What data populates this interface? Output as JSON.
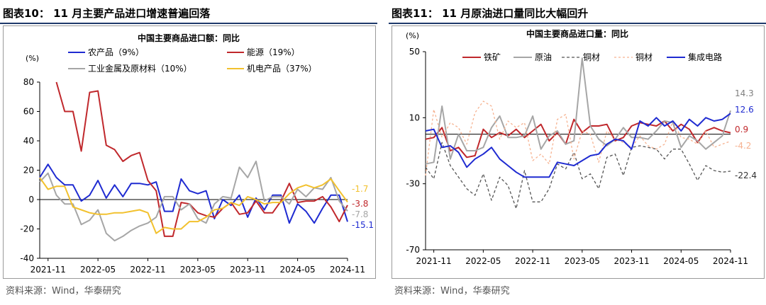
{
  "panels": [
    {
      "title": "图表10：  11 月主要产品进口增速普遍回落",
      "source": "资料来源：Wind，华泰研究"
    },
    {
      "title": "图表11：  11 月原油进口量同比大幅回升",
      "source": "资料来源：Wind，华泰研究"
    }
  ],
  "chart_data": [
    {
      "type": "line",
      "title": "中国主要商品进口额：同比",
      "ylabel": "(%)",
      "ylim": [
        -40,
        80
      ],
      "yticks": [
        -40,
        -20,
        0,
        20,
        40,
        60,
        80
      ],
      "x_range": [
        "2021-10",
        "2024-11"
      ],
      "x_tick_labels": [
        "2021-11",
        "2022-05",
        "2022-11",
        "2023-05",
        "2023-11",
        "2024-05",
        "2024-11"
      ],
      "legend_position": "top",
      "x": [
        "2021-10",
        "2021-11",
        "2021-12",
        "2022-01",
        "2022-02",
        "2022-03",
        "2022-04",
        "2022-05",
        "2022-06",
        "2022-07",
        "2022-08",
        "2022-09",
        "2022-10",
        "2022-11",
        "2022-12",
        "2023-01",
        "2023-02",
        "2023-03",
        "2023-04",
        "2023-05",
        "2023-06",
        "2023-07",
        "2023-08",
        "2023-09",
        "2023-10",
        "2023-11",
        "2023-12",
        "2024-01",
        "2024-02",
        "2024-03",
        "2024-04",
        "2024-05",
        "2024-06",
        "2024-07",
        "2024-08",
        "2024-09",
        "2024-10",
        "2024-11"
      ],
      "series": [
        {
          "name": "农产品（9%）",
          "color": "#1f2bd1",
          "values": [
            15,
            24,
            15,
            10,
            10,
            -1,
            3,
            13,
            1,
            10,
            2,
            11,
            11,
            10,
            12,
            -8,
            -8,
            14,
            6,
            4,
            6,
            -13,
            0,
            -4,
            3,
            -12,
            1,
            -7,
            3,
            3,
            -16,
            -3,
            -8,
            -16,
            -6,
            3,
            3,
            -15.1
          ]
        },
        {
          "name": "能源（19%）",
          "color": "#c0282c",
          "values": [
            null,
            null,
            80,
            60,
            60,
            33,
            73,
            74,
            37,
            34,
            26,
            30,
            32,
            13,
            6,
            -25,
            -25,
            -2,
            -3,
            -9,
            -11,
            -12,
            -6,
            -2,
            -10,
            -9,
            -1,
            -9,
            -9,
            -1,
            11,
            -2,
            -1,
            -1,
            2,
            -5,
            -15,
            -3.8
          ]
        },
        {
          "name": "工业金属及原材料（10%）",
          "color": "#a6a6a6",
          "values": [
            12,
            18,
            3,
            -3,
            -3,
            -17,
            -14,
            -7,
            -23,
            -28,
            -25,
            -21,
            -18,
            -16,
            -12,
            2,
            2,
            -7,
            -3,
            -13,
            -16,
            -3,
            2,
            1,
            22,
            15,
            26,
            -1,
            2,
            2,
            -3,
            7,
            2,
            8,
            7,
            15,
            -1,
            -7.8
          ]
        },
        {
          "name": "机电产品（37%）",
          "color": "#f2c12e",
          "values": [
            15,
            7,
            9,
            9,
            -5,
            -7,
            -9,
            -10,
            -10,
            -9,
            -9,
            -8,
            -7,
            -9,
            -23,
            -19,
            -20,
            -20,
            -15,
            -15,
            -12,
            -7,
            -6,
            -2,
            -4,
            2,
            0,
            -3,
            -2,
            -2,
            4,
            8,
            10,
            8,
            10,
            14,
            6,
            -1.7
          ]
        }
      ],
      "end_labels": [
        "-1.7",
        "-3.8",
        "-7.8",
        "-15.1"
      ]
    },
    {
      "type": "line",
      "title": "中国主要商品进口量：同比",
      "ylabel": "(%)",
      "ylim": [
        -70,
        50
      ],
      "yticks": [
        -70,
        -30,
        10,
        50
      ],
      "x_range": [
        "2021-10",
        "2024-11"
      ],
      "x_tick_labels": [
        "2021-11",
        "2022-05",
        "2022-11",
        "2023-05",
        "2023-11",
        "2024-05",
        "2024-11"
      ],
      "legend_position": "top",
      "x": [
        "2021-10",
        "2021-11",
        "2021-12",
        "2022-01",
        "2022-02",
        "2022-03",
        "2022-04",
        "2022-05",
        "2022-06",
        "2022-07",
        "2022-08",
        "2022-09",
        "2022-10",
        "2022-11",
        "2022-12",
        "2023-01",
        "2023-02",
        "2023-03",
        "2023-04",
        "2023-05",
        "2023-06",
        "2023-07",
        "2023-08",
        "2023-09",
        "2023-10",
        "2023-11",
        "2023-12",
        "2024-01",
        "2024-02",
        "2024-03",
        "2024-04",
        "2024-05",
        "2024-06",
        "2024-07",
        "2024-08",
        "2024-09",
        "2024-10",
        "2024-11"
      ],
      "series": [
        {
          "name": "铁矿",
          "color": "#c0282c",
          "values": [
            -3,
            -2,
            4,
            -10,
            -8,
            -14,
            -13,
            3,
            -2,
            1,
            -1,
            3,
            -2,
            2,
            6,
            -4,
            1,
            -6,
            9,
            1,
            5,
            5,
            6,
            -4,
            -2,
            5,
            7,
            6,
            5,
            8,
            2,
            6,
            3,
            -5,
            2,
            4,
            2,
            0.9
          ]
        },
        {
          "name": "原油",
          "color": "#a6a6a6",
          "values": [
            -18,
            -17,
            17,
            -15,
            0,
            -10,
            -10,
            -8,
            4,
            11,
            -2,
            -2,
            -1,
            11,
            -9,
            -1,
            2,
            -6,
            -4,
            46,
            5,
            -3,
            -7,
            -3,
            4,
            -2,
            -2,
            -3,
            2,
            8,
            7,
            -8,
            -1,
            -4,
            -9,
            -5,
            -1,
            14.3
          ]
        },
        {
          "name": "铜材",
          "color": "#555555",
          "dash": "dashed",
          "values": [
            -20,
            -27,
            -5,
            -19,
            -26,
            -33,
            -37,
            -24,
            -40,
            -26,
            -31,
            -45,
            -22,
            -41,
            -41,
            -33,
            -18,
            -21,
            -11,
            -27,
            -24,
            -33,
            -14,
            -12,
            -25,
            -8,
            -7,
            -8,
            -9,
            -15,
            -9,
            -9,
            -18,
            -28,
            -19,
            -22,
            -23,
            -22.4
          ]
        },
        {
          "name": "铜材",
          "color": "#f6b290",
          "dash": "dotted",
          "values": [
            -25,
            15,
            -2,
            7,
            4,
            -6,
            13,
            20,
            17,
            -3,
            8,
            4,
            7,
            -16,
            -12,
            -18,
            9,
            12,
            -15,
            2,
            0,
            -17,
            2,
            -3,
            -5,
            -8,
            -1,
            -7,
            -9,
            -6,
            8,
            -2,
            -3,
            -6,
            2,
            -8,
            -6,
            -4.2
          ]
        },
        {
          "name": "集成电路",
          "color": "#1f2bd1",
          "values": [
            2,
            3,
            -8,
            -7,
            -11,
            -20,
            -15,
            -12,
            -8,
            -15,
            -19,
            -23,
            -26,
            -26,
            -26,
            -26,
            -17,
            -18,
            -19,
            -16,
            -13,
            -12,
            -6,
            -3,
            -4,
            -9,
            8,
            5,
            10,
            5,
            8,
            2,
            9,
            5,
            10,
            8,
            9,
            12.6
          ]
        }
      ],
      "end_labels": [
        "14.3",
        "12.6",
        "0.9",
        "-4.2",
        "-22.4"
      ]
    }
  ]
}
